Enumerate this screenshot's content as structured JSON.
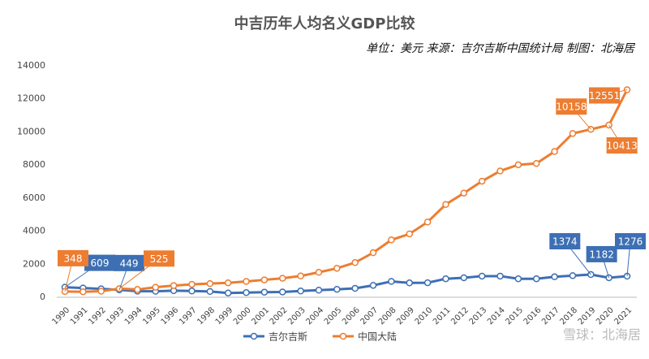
{
  "chart_data": {
    "type": "line",
    "title": "中吉历年人均名义GDP比较",
    "subtitle": "单位：美元 来源：吉尔吉斯中国统计局 制图：北海居",
    "watermark": "雪球：北海居",
    "categories": [
      "1990",
      "1991",
      "1992",
      "1993",
      "1994",
      "1995",
      "1996",
      "1997",
      "1998",
      "1999",
      "2000",
      "2001",
      "2002",
      "2003",
      "2004",
      "2005",
      "2006",
      "2007",
      "2008",
      "2009",
      "2010",
      "2011",
      "2012",
      "2013",
      "2014",
      "2015",
      "2016",
      "2017",
      "2018",
      "2019",
      "2020",
      "2021"
    ],
    "series": [
      {
        "name": "吉尔吉斯",
        "color": "#3d6fb4",
        "labeled": [
          0,
          3,
          29,
          30,
          31
        ],
        "values": [
          609,
          560,
          510,
          449,
          370,
          360,
          400,
          380,
          350,
          260,
          280,
          310,
          320,
          380,
          430,
          480,
          540,
          720,
          960,
          870,
          880,
          1120,
          1180,
          1280,
          1280,
          1120,
          1120,
          1240,
          1310,
          1374,
          1182,
          1276
        ]
      },
      {
        "name": "中国大陆",
        "color": "#ed7d31",
        "labeled": [
          0,
          3,
          29,
          30,
          31
        ],
        "values": [
          348,
          333,
          366,
          525,
          470,
          609,
          709,
          781,
          828,
          873,
          959,
          1053,
          1149,
          1289,
          1509,
          1753,
          2099,
          2694,
          3468,
          3832,
          4550,
          5614,
          6301,
          7020,
          7636,
          8016,
          8094,
          8817,
          9905,
          10158,
          10413,
          12551
        ]
      }
    ],
    "ylim": [
      0,
      14000
    ],
    "yticks": [
      0,
      2000,
      4000,
      6000,
      8000,
      10000,
      12000,
      14000
    ],
    "grid": false,
    "legend": "bottom"
  }
}
